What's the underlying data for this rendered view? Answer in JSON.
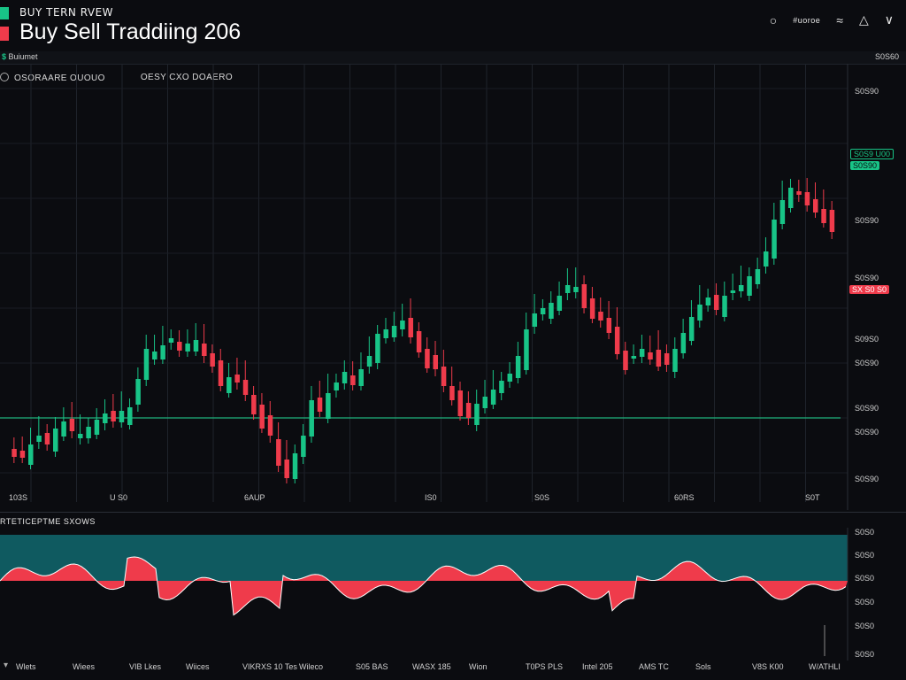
{
  "header": {
    "subtitle": "BUY TERN RVEW",
    "title": "Buy Sell Traddiing 206",
    "icons": [
      "search-icon",
      "menu-icon",
      "wifi-icon",
      "alert-icon",
      "collapse-icon"
    ],
    "label": "#uoroe"
  },
  "infobar": {
    "symbol": "$",
    "left_text": "Buiumet",
    "right_text": "S0S60"
  },
  "ohlc": {
    "left": "OSORAARE OUOUO",
    "right": "OESY CXO DOAERO"
  },
  "price_axis": {
    "labels": [
      "S0S90",
      "S0S90",
      "S0S90",
      "S09S0",
      "S0S90",
      "S0S90",
      "S0S90",
      "S0S90",
      "S0S90"
    ],
    "tag_green_1": "S0S9 U00",
    "tag_green_2": "S0S90",
    "tag_red": "SX S0 S0"
  },
  "time_axis": {
    "labels": [
      "103S",
      "U S0",
      "6AUP",
      "IS0",
      "S0S",
      "60RS",
      "S0T"
    ]
  },
  "indicator": {
    "title": "RTETICEPTME SXOWS",
    "axis_labels": [
      "S0S0",
      "S0S0",
      "S0S0",
      "S0S0",
      "S0S0",
      "S0S0"
    ]
  },
  "bottom_axis": {
    "labels": [
      "Wlets",
      "Wiees",
      "VIB Lkes",
      "Wiices",
      "VIKRXS 10 Tes",
      "Wileco",
      "S05 BAS",
      "WASX 185",
      "Wion",
      "T0PS PLS",
      "Intel 205",
      "AMS TC",
      "Sols",
      "V8S K00",
      "W/ATHLI"
    ]
  },
  "colors": {
    "background": "#0b0c10",
    "bull": "#18c487",
    "bear": "#ef3b4b",
    "grid": "#22262e",
    "teal_band": "#0f5a60"
  }
}
